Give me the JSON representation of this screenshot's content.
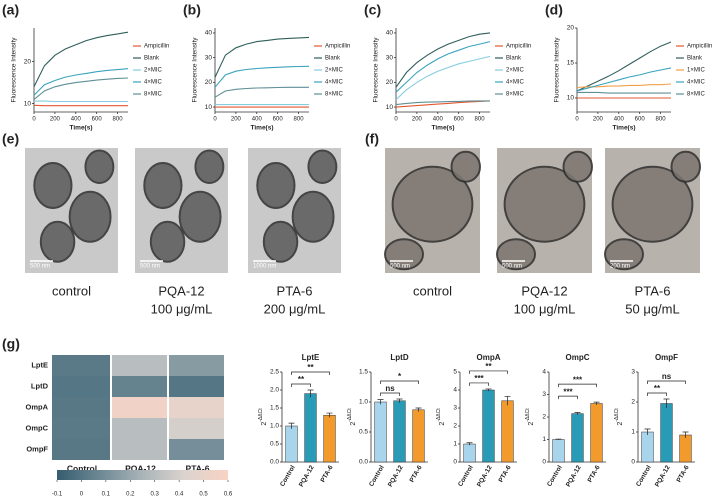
{
  "chart_data": [
    {
      "type": "line",
      "panel": "(a)",
      "xlabel": "Time(s)",
      "ylabel": "Fluorescence Intensity",
      "x": [
        0,
        100,
        200,
        300,
        400,
        500,
        600,
        700,
        800,
        900
      ],
      "xlim": [
        0,
        900
      ],
      "xticks": [
        0,
        200,
        400,
        600,
        800
      ],
      "ylim": [
        8,
        28
      ],
      "yticks": [
        10,
        20
      ],
      "series": [
        {
          "name": "Ampicillin",
          "color": "#e4572e",
          "values": [
            9.6,
            9.5,
            9.5,
            9.5,
            9.5,
            9.5,
            9.5,
            9.5,
            9.5,
            9.5
          ]
        },
        {
          "name": "Blank",
          "color": "#2f5f5b",
          "values": [
            14,
            19,
            21.5,
            23,
            24,
            25,
            25.7,
            26.2,
            26.6,
            27
          ]
        },
        {
          "name": "2×MIC",
          "color": "#86cde0",
          "values": [
            10.6,
            10.6,
            10.5,
            10.5,
            10.5,
            10.5,
            10.5,
            10.5,
            10.5,
            10.5
          ]
        },
        {
          "name": "4×MIC",
          "color": "#3aa3bd",
          "values": [
            12,
            14.5,
            15.5,
            16.3,
            16.8,
            17.2,
            17.6,
            17.9,
            18.1,
            18.3
          ]
        },
        {
          "name": "8×MIC",
          "color": "#5f8f96",
          "values": [
            11,
            13,
            14,
            14.6,
            15,
            15.3,
            15.6,
            15.8,
            16,
            16.1
          ]
        }
      ]
    },
    {
      "type": "line",
      "panel": "(b)",
      "xlabel": "Time(s)",
      "ylabel": "Fluorescence Intensity",
      "x": [
        0,
        100,
        200,
        300,
        400,
        500,
        600,
        700,
        800,
        900
      ],
      "xlim": [
        0,
        900
      ],
      "xticks": [
        0,
        200,
        400,
        600,
        800
      ],
      "ylim": [
        8,
        42
      ],
      "yticks": [
        10,
        20,
        30,
        40
      ],
      "series": [
        {
          "name": "Ampicillin",
          "color": "#e4572e",
          "values": [
            10,
            10,
            10,
            10,
            10,
            10,
            10,
            10,
            10,
            10
          ]
        },
        {
          "name": "Blank",
          "color": "#2f5f5b",
          "values": [
            22,
            31,
            34,
            35.5,
            36.5,
            37,
            37.5,
            37.8,
            38,
            38.2
          ]
        },
        {
          "name": "2×MIC",
          "color": "#86cde0",
          "values": [
            11,
            11,
            11,
            11,
            11,
            11,
            11,
            11,
            11,
            11
          ]
        },
        {
          "name": "4×MIC",
          "color": "#3aa3bd",
          "values": [
            18,
            23,
            24.5,
            25.2,
            25.6,
            25.9,
            26.1,
            26.3,
            26.4,
            26.5
          ]
        },
        {
          "name": "8×MIC",
          "color": "#5f8f96",
          "values": [
            14,
            16.5,
            17.2,
            17.5,
            17.7,
            17.8,
            17.9,
            18,
            18,
            18
          ]
        }
      ]
    },
    {
      "type": "line",
      "panel": "(c)",
      "xlabel": "Time(s)",
      "ylabel": "Fluorescence Intensity",
      "x": [
        0,
        100,
        200,
        300,
        400,
        500,
        600,
        700,
        800,
        900
      ],
      "xlim": [
        0,
        900
      ],
      "xticks": [
        0,
        200,
        400,
        600,
        800
      ],
      "ylim": [
        8,
        42
      ],
      "yticks": [
        10,
        20,
        30,
        40
      ],
      "series": [
        {
          "name": "Ampicillin",
          "color": "#e4572e",
          "values": [
            10,
            10.3,
            10.6,
            10.9,
            11.2,
            11.5,
            11.8,
            12.1,
            12.3,
            12.5
          ]
        },
        {
          "name": "Blank",
          "color": "#2f5f5b",
          "values": [
            18,
            24,
            28,
            31,
            33.5,
            35.5,
            37,
            38.5,
            39.5,
            40
          ]
        },
        {
          "name": "2×MIC",
          "color": "#86cde0",
          "values": [
            13,
            17,
            20,
            22.5,
            24.5,
            26,
            27.5,
            28.5,
            29.5,
            30.5
          ]
        },
        {
          "name": "4×MIC",
          "color": "#3aa3bd",
          "values": [
            16,
            20,
            24,
            27,
            29.5,
            31.5,
            33,
            34.5,
            35.5,
            36.5
          ]
        },
        {
          "name": "8×MIC",
          "color": "#5f8f96",
          "values": [
            11,
            11.5,
            11.8,
            12,
            12.1,
            12.2,
            12.3,
            12.4,
            12.5,
            12.5
          ]
        }
      ]
    },
    {
      "type": "line",
      "panel": "(d)",
      "xlabel": "Time(s)",
      "ylabel": "Fluorescence Intensity",
      "x": [
        0,
        100,
        200,
        300,
        400,
        500,
        600,
        700,
        800,
        900
      ],
      "xlim": [
        0,
        900
      ],
      "xticks": [
        0,
        200,
        400,
        600,
        800
      ],
      "ylim": [
        8,
        20
      ],
      "yticks": [
        10,
        15,
        20
      ],
      "series": [
        {
          "name": "Ampicillin",
          "color": "#e4572e",
          "values": [
            10,
            10,
            10,
            10,
            10,
            10,
            10,
            10,
            10,
            10
          ]
        },
        {
          "name": "Blank",
          "color": "#2f5f5b",
          "values": [
            11,
            11.7,
            12.4,
            13.1,
            13.9,
            14.8,
            15.7,
            16.6,
            17.4,
            18
          ]
        },
        {
          "name": "1×MIC",
          "color": "#f0a04a",
          "values": [
            11.5,
            11.6,
            11.6,
            11.7,
            11.7,
            11.8,
            11.8,
            11.9,
            11.9,
            12
          ]
        },
        {
          "name": "4×MIC",
          "color": "#3aa3bd",
          "values": [
            11,
            11.4,
            11.8,
            12.2,
            12.6,
            13,
            13.3,
            13.7,
            14,
            14.3
          ]
        },
        {
          "name": "8×MIC",
          "color": "#5f8f96",
          "values": [
            10.8,
            10.8,
            10.8,
            10.7,
            10.7,
            10.7,
            10.7,
            10.7,
            10.7,
            10.7
          ]
        }
      ]
    },
    {
      "type": "heatmap",
      "panel": "(g)",
      "rows": [
        "LptE",
        "LptD",
        "OmpA",
        "OmpC",
        "OmpF"
      ],
      "columns": [
        "Control",
        "PQA-12",
        "PTA-6"
      ],
      "values": [
        [
          0.02,
          0.3,
          0.15
        ],
        [
          0.0,
          0.05,
          0.0
        ],
        [
          0.01,
          0.55,
          0.5
        ],
        [
          0.02,
          0.3,
          0.4
        ],
        [
          0.01,
          0.3,
          0.1
        ]
      ],
      "zlim": [
        -0.1,
        0.6
      ],
      "zticks": [
        -0.1,
        0,
        0.1,
        0.2,
        0.3,
        0.4,
        0.5,
        0.6
      ],
      "colorscale": [
        "#355d6e",
        "#6d8894",
        "#a9b4b8",
        "#dcd3cf",
        "#f8d3c3"
      ]
    },
    {
      "type": "bar",
      "title": "LptE",
      "y_label": {
        "base": "2",
        "superscript": "-ΔΔCt"
      },
      "categories": [
        "Control",
        "PQA-12",
        "PTA-6"
      ],
      "colors": [
        "#a9d5ec",
        "#2a9bb7",
        "#f39a2c"
      ],
      "values": [
        1.0,
        1.9,
        1.3
      ],
      "errors": [
        0.08,
        0.1,
        0.06
      ],
      "ylim": [
        0,
        2.5
      ],
      "yticks": [
        {
          "value": 0,
          "label": "0.0"
        },
        {
          "value": 0.5,
          "label": "0.5"
        },
        {
          "value": 1,
          "label": "1.0"
        },
        {
          "value": 1.5,
          "label": "1.5"
        },
        {
          "value": 2,
          "label": "2.0"
        },
        {
          "value": 2.5,
          "label": "2.5"
        }
      ],
      "significance": [
        "**",
        "**"
      ]
    },
    {
      "type": "bar",
      "title": "LptD",
      "y_label": {
        "base": "2",
        "superscript": "-ΔΔCt"
      },
      "categories": [
        "Control",
        "PQA-12",
        "PTA-6"
      ],
      "colors": [
        "#a9d5ec",
        "#2a9bb7",
        "#f39a2c"
      ],
      "values": [
        1.0,
        1.02,
        0.87
      ],
      "errors": [
        0.04,
        0.03,
        0.03
      ],
      "ylim": [
        0,
        1.5
      ],
      "yticks": [
        {
          "value": 0,
          "label": "0.0"
        },
        {
          "value": 0.5,
          "label": "0.5"
        },
        {
          "value": 1,
          "label": "1.0"
        },
        {
          "value": 1.5,
          "label": "1.5"
        }
      ],
      "significance": [
        "ns",
        "*"
      ]
    },
    {
      "type": "bar",
      "title": "OmpA",
      "y_label": {
        "base": "2",
        "superscript": "-ΔΔCt"
      },
      "categories": [
        "Control",
        "PQA-12",
        "PTA-6"
      ],
      "colors": [
        "#a9d5ec",
        "#2a9bb7",
        "#f39a2c"
      ],
      "values": [
        1.0,
        4.0,
        3.4
      ],
      "errors": [
        0.07,
        0.06,
        0.25
      ],
      "ylim": [
        0,
        5
      ],
      "yticks": [
        0,
        1,
        2,
        3,
        4,
        5
      ],
      "significance": [
        "***",
        "**"
      ]
    },
    {
      "type": "bar",
      "title": "OmpC",
      "y_label": {
        "base": "2",
        "superscript": "-ΔΔCt"
      },
      "categories": [
        "Control",
        "PQA-12",
        "PTA-6"
      ],
      "colors": [
        "#a9d5ec",
        "#2a9bb7",
        "#f39a2c"
      ],
      "values": [
        1.0,
        2.15,
        2.6
      ],
      "errors": [
        0.02,
        0.05,
        0.06
      ],
      "ylim": [
        0,
        4
      ],
      "yticks": [
        0,
        1,
        2,
        3,
        4
      ],
      "significance": [
        "***",
        "***"
      ]
    },
    {
      "type": "bar",
      "title": "OmpF",
      "y_label": {
        "base": "2",
        "superscript": "-ΔΔCt"
      },
      "categories": [
        "Control",
        "PQA-12",
        "PTA-6"
      ],
      "colors": [
        "#a9d5ec",
        "#2a9bb7",
        "#f39a2c"
      ],
      "values": [
        1.0,
        1.95,
        0.9
      ],
      "errors": [
        0.1,
        0.15,
        0.1
      ],
      "ylim": [
        0,
        3
      ],
      "yticks": [
        0,
        1,
        2,
        3
      ],
      "significance": [
        "**",
        "ns"
      ]
    }
  ],
  "micrographs": [
    {
      "panel": "(e)",
      "images": [
        {
          "scale_bar": "500 nm",
          "caption": [
            "control"
          ]
        },
        {
          "scale_bar": "500 nm",
          "caption": [
            "PQA-12",
            "100 μg/mL"
          ]
        },
        {
          "scale_bar": "1000 nm",
          "caption": [
            "PTA-6",
            "200 μg/mL"
          ]
        }
      ]
    },
    {
      "panel": "(f)",
      "images": [
        {
          "scale_bar": "500 nm",
          "caption": [
            "control"
          ]
        },
        {
          "scale_bar": "500 nm",
          "caption": [
            "PQA-12",
            "100 μg/mL"
          ]
        },
        {
          "scale_bar": "200 nm",
          "caption": [
            "PTA-6",
            "50 μg/mL"
          ]
        }
      ]
    }
  ]
}
